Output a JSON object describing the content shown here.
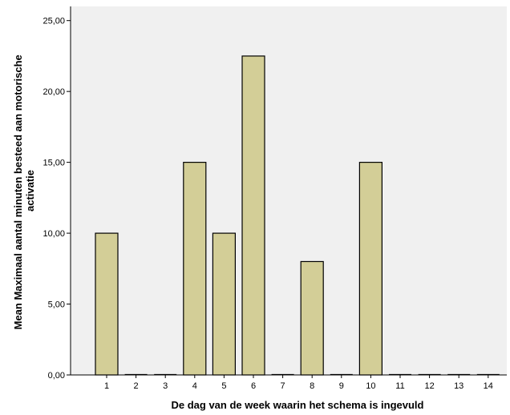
{
  "chart_data": {
    "type": "bar",
    "categories": [
      "1",
      "2",
      "3",
      "4",
      "5",
      "6",
      "7",
      "8",
      "9",
      "10",
      "11",
      "12",
      "13",
      "14"
    ],
    "values": [
      10,
      0,
      0,
      15,
      10,
      22.5,
      0,
      8,
      0,
      15,
      0,
      0,
      0,
      0
    ],
    "title": "",
    "xlabel": "De dag van de week waarin het schema is ingevuld",
    "ylabel_lines": [
      "Mean Maximaal aantal minuten besteed aan motorische",
      "activatie"
    ],
    "ylim": [
      0,
      26
    ],
    "yticks": [
      0,
      5,
      10,
      15,
      20,
      25
    ],
    "ytick_labels": [
      "0,00",
      "5,00",
      "10,00",
      "15,00",
      "20,00",
      "25,00"
    ],
    "grid": false,
    "colors": {
      "plot_background": "#f0f0f0",
      "bar_fill": "#d3ce97",
      "bar_stroke": "#000000"
    }
  }
}
